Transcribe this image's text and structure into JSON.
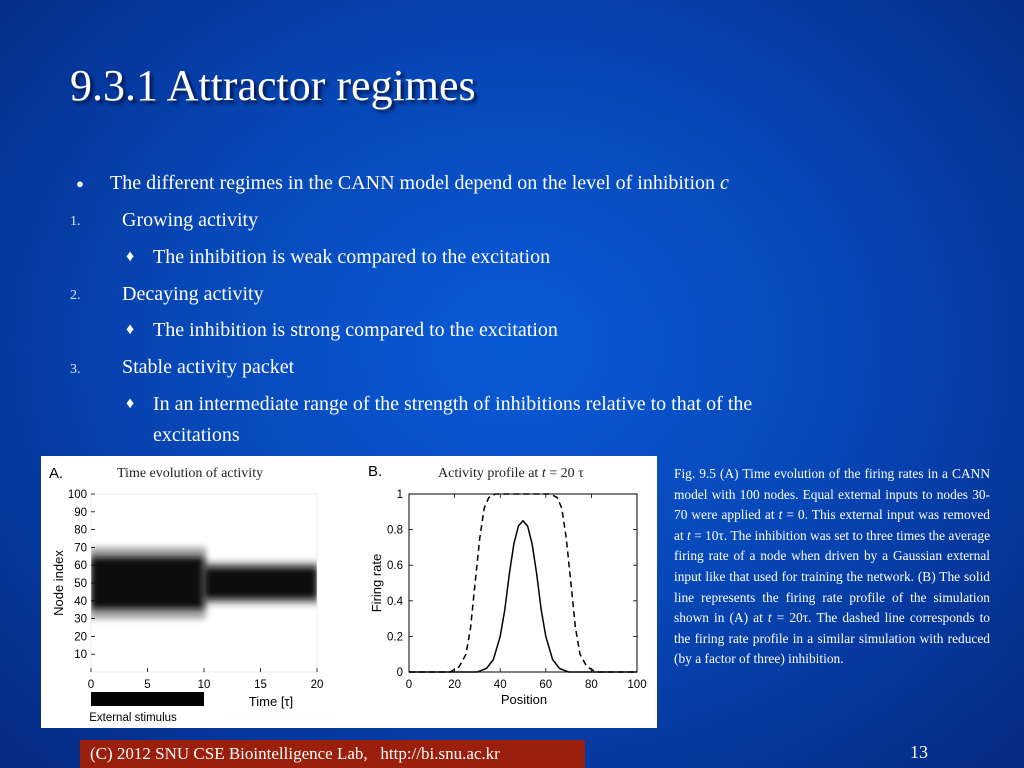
{
  "slide": {
    "title": "9.3.1 Attractor regimes",
    "bullets": [
      {
        "marker": "●",
        "text": "The different regimes in the CANN model depend on the level of inhibition ",
        "italic": "c"
      },
      {
        "marker": "1.",
        "text": "Growing activity"
      },
      {
        "marker": "♦",
        "text": "The inhibition is weak compared to the excitation"
      },
      {
        "marker": "2.",
        "text": "Decaying activity"
      },
      {
        "marker": "♦",
        "text": "The inhibition is strong compared to the excitation"
      },
      {
        "marker": "3.",
        "text": "Stable activity packet"
      },
      {
        "marker": "♦",
        "line1": "In an intermediate range of the strength of inhibitions relative to that of the",
        "line2": "excitations"
      }
    ],
    "caption": "Fig. 9.5 (A) Time evolution of the firing rates in a CANN model with 100 nodes. Equal external inputs to nodes 30-70 were applied at t = 0. This external input was removed at t = 10τ. The inhibition was set to three times the average firing rate of a node when driven by a Gaussian external input like that used for training the network. (B) The solid line represents the firing rate profile of the simulation shown in (A) at t = 20τ. The dashed line corresponds to the firing rate profile in a similar simulation with reduced (by a factor of three) inhibition.",
    "footer": "(C) 2012 SNU CSE Biointelligence Lab,   http://bi.snu.ac.kr",
    "page_number": "13"
  },
  "chart_data": [
    {
      "type": "heatmap",
      "panel": "A.",
      "title": "Time evolution of activity",
      "xlabel": "Time [τ]",
      "ylabel": "Node index",
      "x_ticks": [
        "0",
        "5",
        "10",
        "15",
        "20"
      ],
      "y_ticks": [
        "10",
        "20",
        "30",
        "40",
        "50",
        "60",
        "70",
        "80",
        "90",
        "100"
      ],
      "xlim": [
        0,
        20
      ],
      "ylim": [
        0,
        100
      ],
      "stimulus_label": "External stimulus",
      "stimulus_interval": [
        0,
        10
      ],
      "activity_bands": [
        {
          "t_start": 0,
          "t_end": 10,
          "node_low": 30,
          "node_high": 70
        },
        {
          "t_start": 10,
          "t_end": 20,
          "node_low": 38,
          "node_high": 62
        }
      ]
    },
    {
      "type": "line",
      "panel": "B.",
      "title": "Activity profile at t = 20 τ",
      "xlabel": "Position",
      "ylabel": "Firing rate",
      "x_ticks": [
        "0",
        "20",
        "40",
        "60",
        "80",
        "100"
      ],
      "y_ticks": [
        "0",
        "0.2",
        "0.4",
        "0.6",
        "0.8",
        "1"
      ],
      "xlim": [
        0,
        100
      ],
      "ylim": [
        0,
        1
      ],
      "series": [
        {
          "style": "solid",
          "x": [
            0,
            30,
            34,
            37,
            40,
            42,
            44,
            46,
            48,
            50,
            52,
            54,
            56,
            58,
            60,
            63,
            66,
            70,
            100
          ],
          "y": [
            0,
            0,
            0.02,
            0.07,
            0.2,
            0.35,
            0.55,
            0.72,
            0.82,
            0.85,
            0.82,
            0.72,
            0.55,
            0.35,
            0.2,
            0.07,
            0.02,
            0,
            0
          ]
        },
        {
          "style": "dashed",
          "x": [
            0,
            18,
            22,
            25,
            27,
            29,
            31,
            33,
            35,
            38,
            62,
            65,
            67,
            69,
            71,
            73,
            75,
            78,
            82,
            100
          ],
          "y": [
            0,
            0,
            0.03,
            0.1,
            0.25,
            0.5,
            0.75,
            0.92,
            0.98,
            1,
            1,
            0.98,
            0.92,
            0.75,
            0.5,
            0.25,
            0.1,
            0.03,
            0,
            0
          ]
        }
      ]
    }
  ]
}
